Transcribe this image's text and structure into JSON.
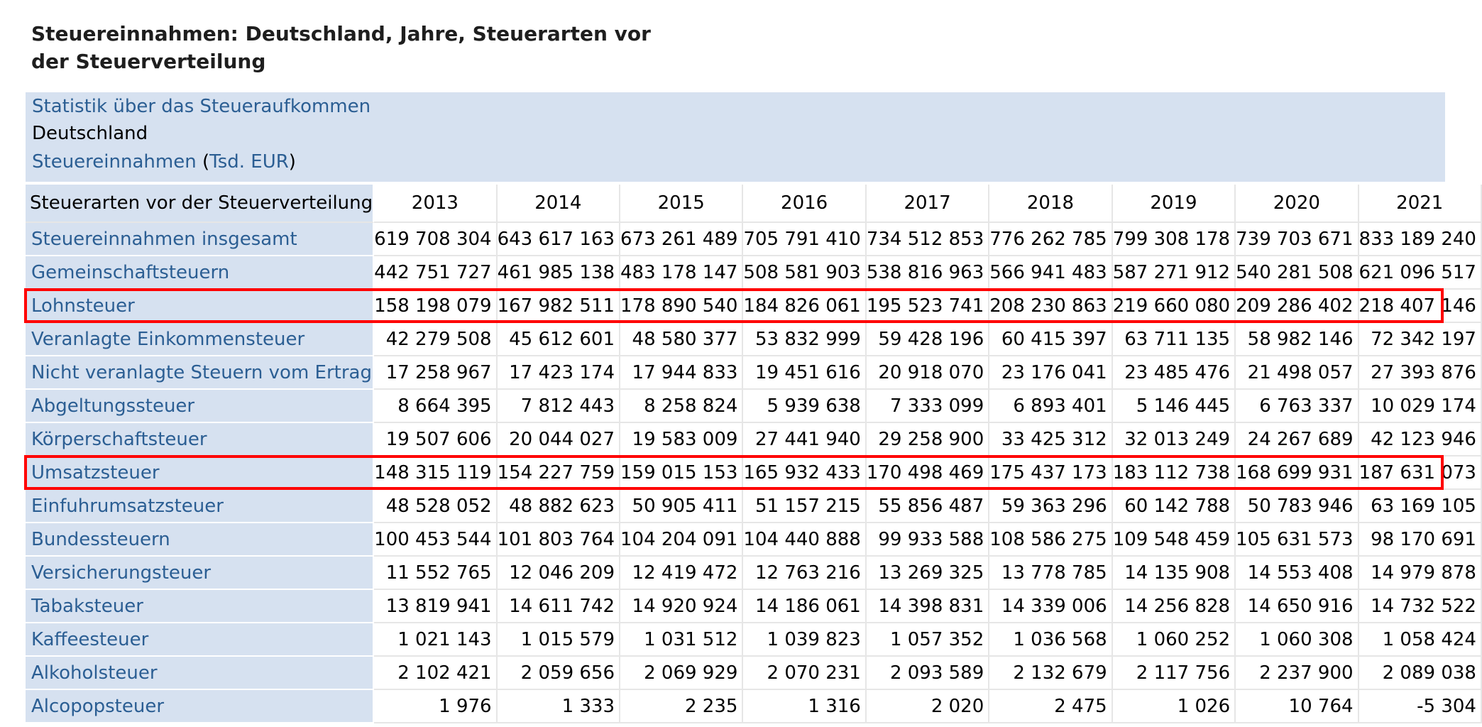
{
  "title": "Steuereinnahmen: Deutschland, Jahre, Steuerarten vor der Steuerverteilung",
  "meta": {
    "statistic": "Statistik über das Steueraufkommen",
    "region": "Deutschland",
    "measure": "Steuereinnahmen",
    "unit": "Tsd. EUR"
  },
  "table": {
    "corner_header": "Steuerarten vor der Steuerverteilung",
    "years": [
      "2013",
      "2014",
      "2015",
      "2016",
      "2017",
      "2018",
      "2019",
      "2020",
      "2021"
    ],
    "rows": [
      {
        "label": "Steuereinnahmen insgesamt",
        "values": [
          "619 708 304",
          "643 617 163",
          "673 261 489",
          "705 791 410",
          "734 512 853",
          "776 262 785",
          "799 308 178",
          "739 703 671",
          "833 189 240"
        ]
      },
      {
        "label": "Gemeinschaftsteuern",
        "values": [
          "442 751 727",
          "461 985 138",
          "483 178 147",
          "508 581 903",
          "538 816 963",
          "566 941 483",
          "587 271 912",
          "540 281 508",
          "621 096 517"
        ]
      },
      {
        "label": "Lohnsteuer",
        "values": [
          "158 198 079",
          "167 982 511",
          "178 890 540",
          "184 826 061",
          "195 523 741",
          "208 230 863",
          "219 660 080",
          "209 286 402",
          "218 407 146"
        ]
      },
      {
        "label": "Veranlagte Einkommensteuer",
        "values": [
          "42 279 508",
          "45 612 601",
          "48 580 377",
          "53 832 999",
          "59 428 196",
          "60 415 397",
          "63 711 135",
          "58 982 146",
          "72 342 197"
        ]
      },
      {
        "label": "Nicht veranlagte Steuern vom Ertrag",
        "values": [
          "17 258 967",
          "17 423 174",
          "17 944 833",
          "19 451 616",
          "20 918 070",
          "23 176 041",
          "23 485 476",
          "21 498 057",
          "27 393 876"
        ]
      },
      {
        "label": "Abgeltungssteuer",
        "values": [
          "8 664 395",
          "7 812 443",
          "8 258 824",
          "5 939 638",
          "7 333 099",
          "6 893 401",
          "5 146 445",
          "6 763 337",
          "10 029 174"
        ]
      },
      {
        "label": "Körperschaftsteuer",
        "values": [
          "19 507 606",
          "20 044 027",
          "19 583 009",
          "27 441 940",
          "29 258 900",
          "33 425 312",
          "32 013 249",
          "24 267 689",
          "42 123 946"
        ]
      },
      {
        "label": "Umsatzsteuer",
        "values": [
          "148 315 119",
          "154 227 759",
          "159 015 153",
          "165 932 433",
          "170 498 469",
          "175 437 173",
          "183 112 738",
          "168 699 931",
          "187 631 073"
        ]
      },
      {
        "label": "Einfuhrumsatzsteuer",
        "values": [
          "48 528 052",
          "48 882 623",
          "50 905 411",
          "51 157 215",
          "55 856 487",
          "59 363 296",
          "60 142 788",
          "50 783 946",
          "63 169 105"
        ]
      },
      {
        "label": "Bundessteuern",
        "values": [
          "100 453 544",
          "101 803 764",
          "104 204 091",
          "104 440 888",
          "99 933 588",
          "108 586 275",
          "109 548 459",
          "105 631 573",
          "98 170 691"
        ]
      },
      {
        "label": "Versicherungsteuer",
        "values": [
          "11 552 765",
          "12 046 209",
          "12 419 472",
          "12 763 216",
          "13 269 325",
          "13 778 785",
          "14 135 908",
          "14 553 408",
          "14 979 878"
        ]
      },
      {
        "label": "Tabaksteuer",
        "values": [
          "13 819 941",
          "14 611 742",
          "14 920 924",
          "14 186 061",
          "14 398 831",
          "14 339 006",
          "14 256 828",
          "14 650 916",
          "14 732 522"
        ]
      },
      {
        "label": "Kaffeesteuer",
        "values": [
          "1 021 143",
          "1 015 579",
          "1 031 512",
          "1 039 823",
          "1 057 352",
          "1 036 568",
          "1 060 252",
          "1 060 308",
          "1 058 424"
        ]
      },
      {
        "label": "Alkoholsteuer",
        "values": [
          "2 102 421",
          "2 059 656",
          "2 069 929",
          "2 070 231",
          "2 093 589",
          "2 132 679",
          "2 117 756",
          "2 237 900",
          "2 089 038"
        ]
      },
      {
        "label": "Alcopopsteuer",
        "values": [
          "1 976",
          "1 333",
          "2 235",
          "1 316",
          "2 020",
          "2 475",
          "1 026",
          "10 764",
          "-5 304"
        ]
      }
    ],
    "highlighted_rows": [
      "Lohnsteuer",
      "Umsatzsteuer"
    ],
    "highlight_color": "#ff0000"
  }
}
